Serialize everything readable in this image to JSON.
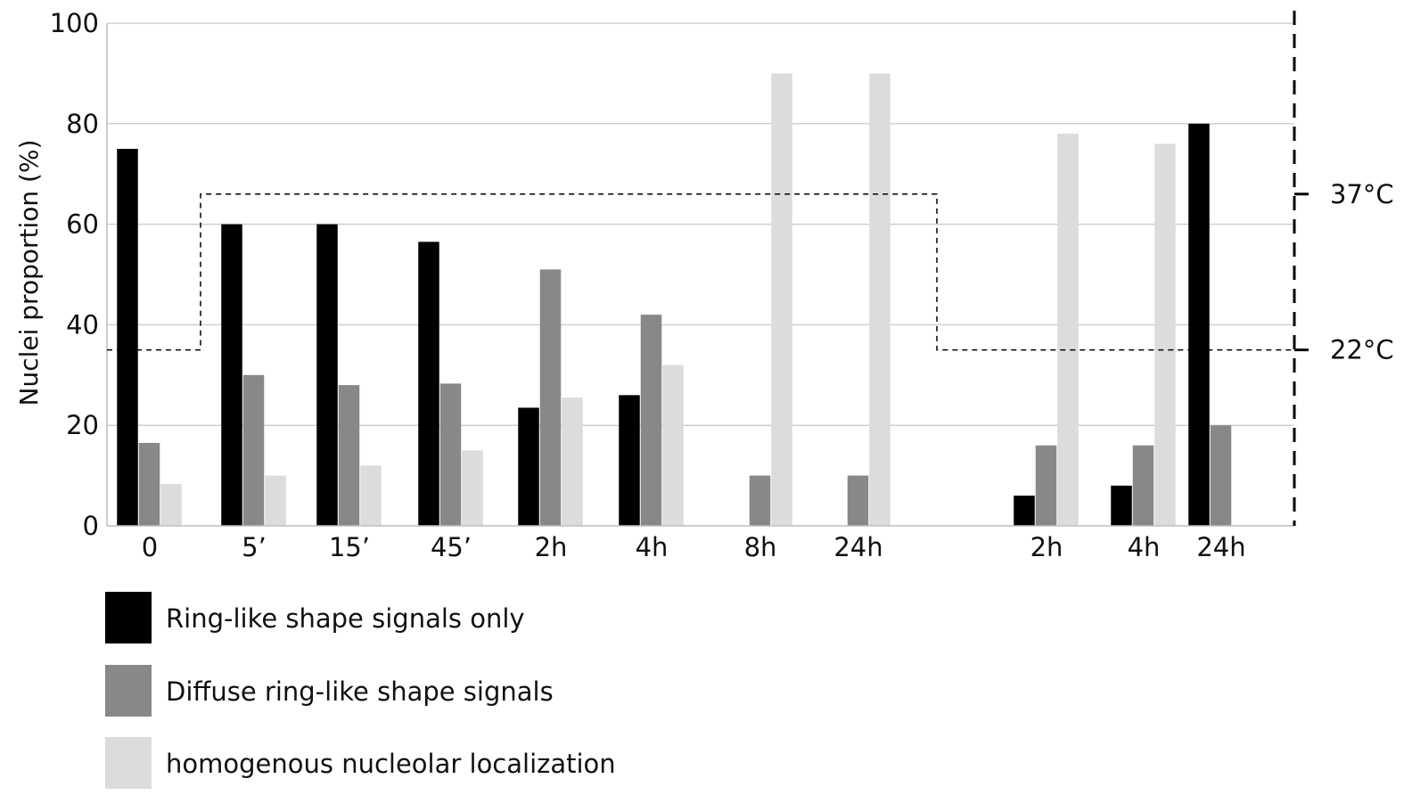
{
  "chart_data": {
    "type": "bar",
    "ylabel": "Nuclei proportion (%)",
    "ylim": [
      0,
      100
    ],
    "yticks": [
      "0",
      "20",
      "40",
      "60",
      "80",
      "100"
    ],
    "grid": true,
    "categories": [
      "0",
      "5’",
      "15’",
      "45’",
      "2h",
      "4h",
      "8h",
      "24h",
      "",
      "2h",
      "4h",
      "24h"
    ],
    "series": [
      {
        "name": "Ring-like shape signals only",
        "color": "#000000",
        "values": [
          75,
          60,
          60,
          56.5,
          23.5,
          26,
          0,
          0,
          null,
          6,
          8,
          80
        ]
      },
      {
        "name": "Diffuse ring-like shape signals",
        "color": "#888888",
        "values": [
          16.5,
          30,
          28,
          28.3,
          51,
          42,
          10,
          10,
          null,
          16,
          16,
          20
        ]
      },
      {
        "name": "homogenous nucleolar localization",
        "color": "#dcdcdc",
        "values": [
          8.3,
          10,
          12,
          15,
          25.5,
          32,
          90,
          90,
          null,
          78,
          76,
          0
        ]
      }
    ],
    "temperature": {
      "labels": [
        "37°C",
        "22°C"
      ],
      "levels": [
        66,
        35
      ],
      "profile": [
        22,
        37,
        37,
        37,
        37,
        37,
        37,
        37,
        22,
        22,
        22,
        22
      ]
    },
    "legend_position": "bottom-left"
  }
}
